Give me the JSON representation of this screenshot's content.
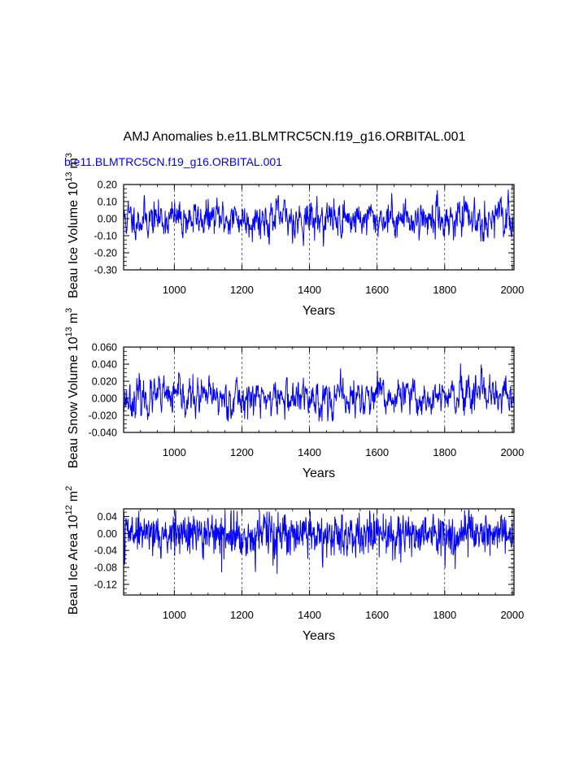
{
  "title": "AMJ Anomalies b.e11.BLMTRC5CN.f19_g16.ORBITAL.001",
  "subtitle": "b.e11.BLMTRC5CN.f19_g16.ORBITAL.001",
  "line_color": "#0000ff",
  "chart_data": [
    {
      "type": "line",
      "name": "ice-volume",
      "ylabel": "Beau Ice Volume 10",
      "ylabel_exp": "13",
      "ylabel_unit": "m",
      "ylabel_unit_exp": "3",
      "xlabel": "Years",
      "xlim": [
        850,
        2005
      ],
      "ylim": [
        -0.3,
        0.2
      ],
      "xticks": [
        1000,
        1200,
        1400,
        1600,
        1800,
        2000
      ],
      "xtick_labels": [
        "1000",
        "1200",
        "1400",
        "1600",
        "1800",
        "2000"
      ],
      "yticks": [
        -0.3,
        -0.2,
        -0.1,
        0.0,
        0.1,
        0.2
      ],
      "ytick_labels": [
        "-0.30",
        "-0.20",
        "-0.10",
        "0.00",
        "0.10",
        "0.20"
      ],
      "series": {
        "name": "Beau Ice Volume",
        "seed": 11,
        "sd": 0.045,
        "ar": 0.55,
        "cap_lo": -0.19,
        "cap_hi": 0.17
      }
    },
    {
      "type": "line",
      "name": "snow-volume",
      "ylabel": "Beau Snow Volume 10",
      "ylabel_exp": "13",
      "ylabel_unit": "m",
      "ylabel_unit_exp": "3",
      "xlabel": "Years",
      "xlim": [
        850,
        2005
      ],
      "ylim": [
        -0.04,
        0.06
      ],
      "xticks": [
        1000,
        1200,
        1400,
        1600,
        1800,
        2000
      ],
      "xtick_labels": [
        "1000",
        "1200",
        "1400",
        "1600",
        "1800",
        "2000"
      ],
      "yticks": [
        -0.04,
        -0.02,
        0.0,
        0.02,
        0.04,
        0.06
      ],
      "ytick_labels": [
        "-0.040",
        "-0.020",
        "0.000",
        "0.020",
        "0.040",
        "0.060"
      ],
      "series": {
        "name": "Beau Snow Volume",
        "seed": 23,
        "sd": 0.009,
        "ar": 0.6,
        "cap_lo": -0.027,
        "cap_hi": 0.055
      }
    },
    {
      "type": "line",
      "name": "ice-area",
      "ylabel": "Beau Ice Area 10",
      "ylabel_exp": "12",
      "ylabel_unit": "m",
      "ylabel_unit_exp": "2",
      "xlabel": "Years",
      "xlim": [
        850,
        2005
      ],
      "ylim": [
        -0.145,
        0.058
      ],
      "xticks": [
        1000,
        1200,
        1400,
        1600,
        1800,
        2000
      ],
      "xtick_labels": [
        "1000",
        "1200",
        "1400",
        "1600",
        "1800",
        "2000"
      ],
      "yticks": [
        -0.12,
        -0.08,
        -0.04,
        0.0,
        0.04
      ],
      "ytick_labels": [
        "-0.12",
        "-0.08",
        "-0.04",
        "0.00",
        "0.04"
      ],
      "series": {
        "name": "Beau Ice Area",
        "seed": 37,
        "sd": 0.022,
        "ar": 0.2,
        "cap_lo": -0.135,
        "cap_hi": 0.055
      }
    }
  ]
}
